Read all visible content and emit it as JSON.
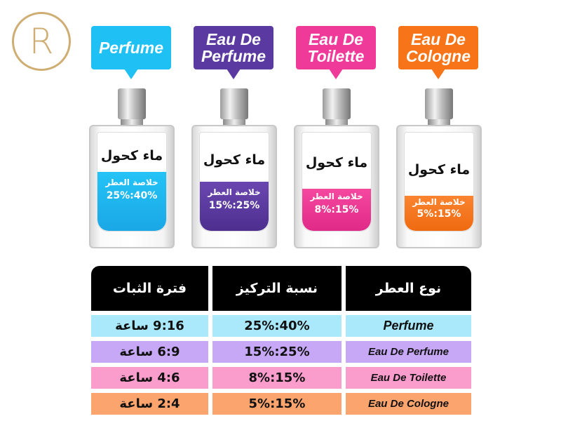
{
  "logo": {
    "letter": "R",
    "color": "#cfae74"
  },
  "bottles": [
    {
      "label": "Perfume",
      "color": "#1fc0f4",
      "alcohol_label": "ماء كحول",
      "essence_label": "خلاصة العطر",
      "concentration": "25%:40%"
    },
    {
      "label": "Eau De Perfume",
      "color": "#5a3aa0",
      "alcohol_label": "ماء كحول",
      "essence_label": "خلاصة العطر",
      "concentration": "15%:25%"
    },
    {
      "label": "Eau De Toilette",
      "color": "#f03a9a",
      "alcohol_label": "ماء كحول",
      "essence_label": "خلاصة العطر",
      "concentration": "8%:15%"
    },
    {
      "label": "Eau De Cologne",
      "color": "#f77418",
      "alcohol_label": "ماء كحول",
      "essence_label": "خلاصة العطر",
      "concentration": "5%:15%"
    }
  ],
  "table": {
    "headers": [
      "نوع العطر",
      "نسبة التركيز",
      "فترة الثبات"
    ],
    "rows": [
      {
        "type": "Perfume",
        "concentration": "25%:40%",
        "duration": "9:16 ساعة",
        "color": "#a9e9fb"
      },
      {
        "type": "Eau De Perfume",
        "concentration": "15%:25%",
        "duration": "6:9 ساعة",
        "color": "#c7a8f6"
      },
      {
        "type": "Eau De Toilette",
        "concentration": "8%:15%",
        "duration": "4:6 ساعة",
        "color": "#fa9ccc"
      },
      {
        "type": "Eau De Cologne",
        "concentration": "5%:15%",
        "duration": "2:4 ساعة",
        "color": "#fca46d"
      }
    ]
  }
}
